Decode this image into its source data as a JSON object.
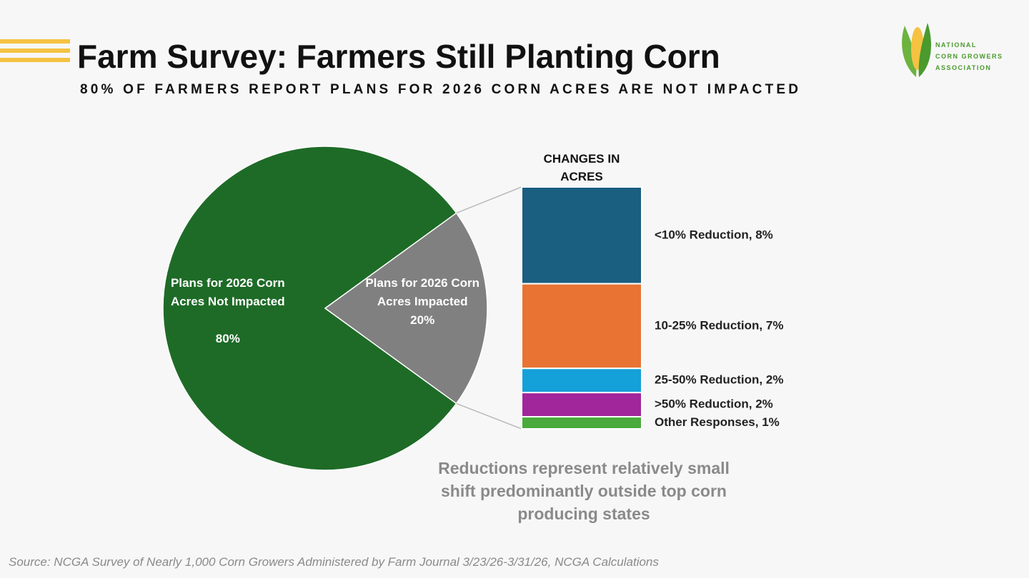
{
  "header": {
    "title": "Farm Survey: Farmers Still Planting Corn",
    "subtitle": "80% OF FARMERS REPORT PLANS FOR 2026 CORN ACRES ARE NOT IMPACTED",
    "logo": [
      "NATIONAL",
      "CORN GROWERS",
      "ASSOCIATION"
    ]
  },
  "chart_data": [
    {
      "type": "pie",
      "categories": [
        "Plans for 2026 Corn Acres Not Impacted",
        "Plans for 2026 Corn Acres Impacted"
      ],
      "values": [
        80,
        20
      ],
      "value_labels": [
        "80%",
        "20%"
      ],
      "colors": [
        "#1e6b27",
        "#808080"
      ]
    },
    {
      "type": "bar",
      "stacked": true,
      "title": "CHANGES IN ACRES",
      "series": [
        {
          "name": "<10% Reduction, 8%",
          "color": "#1a5e80",
          "values": [
            8
          ]
        },
        {
          "name": "10-25% Reduction, 7%",
          "color": "#e87333",
          "values": [
            7
          ]
        },
        {
          "name": "25-50% Reduction, 2%",
          "color": "#14a0d8",
          "values": [
            2
          ]
        },
        {
          "name": ">50% Reduction, 2%",
          "color": "#a1259b",
          "values": [
            2
          ]
        },
        {
          "name": "Other Responses, 1%",
          "color": "#4aaa3c",
          "values": [
            1
          ]
        }
      ]
    }
  ],
  "annotation": "Reductions represent relatively small shift predominantly outside top corn producing states",
  "source": "Source: NCGA Survey of Nearly 1,000 Corn Growers Administered by Farm Journal 3/23/26-3/31/26, NCGA Calculations"
}
